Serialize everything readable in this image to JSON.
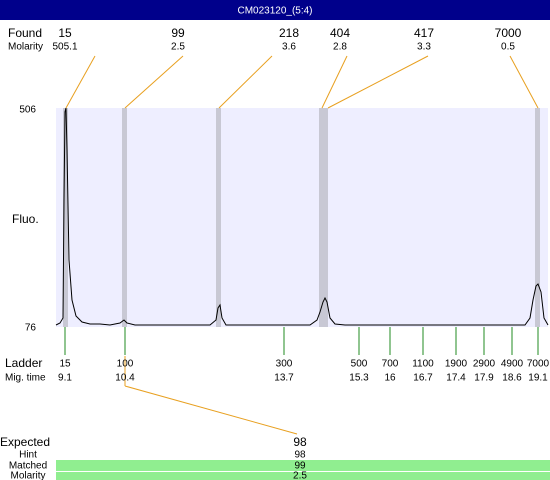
{
  "title": "CM023120_(5:4)",
  "found": {
    "label": "Found",
    "molarity_label": "Molarity",
    "peaks": [
      {
        "size": 15,
        "molarity": 505.1
      },
      {
        "size": 99,
        "molarity": 2.5
      },
      {
        "size": 218,
        "molarity": 3.6
      },
      {
        "size": 404,
        "molarity": 2.8
      },
      {
        "size": 417,
        "molarity": 3.3
      },
      {
        "size": 7000,
        "molarity": 0.5
      }
    ]
  },
  "plot": {
    "y_label": "Fluo.",
    "y_max": 506,
    "y_min": 76
  },
  "ladder": {
    "label": "Ladder",
    "time_label": "Mig. time",
    "items": [
      {
        "size": 15,
        "time": 9.1
      },
      {
        "size": 100,
        "time": 10.4
      },
      {
        "size": 300,
        "time": 13.7
      },
      {
        "size": 500,
        "time": 15.3
      },
      {
        "size": 700,
        "time": 16
      },
      {
        "size": 1100,
        "time": 16.7
      },
      {
        "size": 1900,
        "time": 17.4
      },
      {
        "size": 2900,
        "time": 17.9
      },
      {
        "size": 4900,
        "time": 18.6
      },
      {
        "size": 7000,
        "time": 19.1
      }
    ]
  },
  "expected": {
    "label": "Expected",
    "value": 98,
    "hint_label": "Hint",
    "hint": 98,
    "matched_label": "Matched",
    "matched": 99,
    "molarity_label": "Molarity",
    "molarity": 2.5
  }
}
